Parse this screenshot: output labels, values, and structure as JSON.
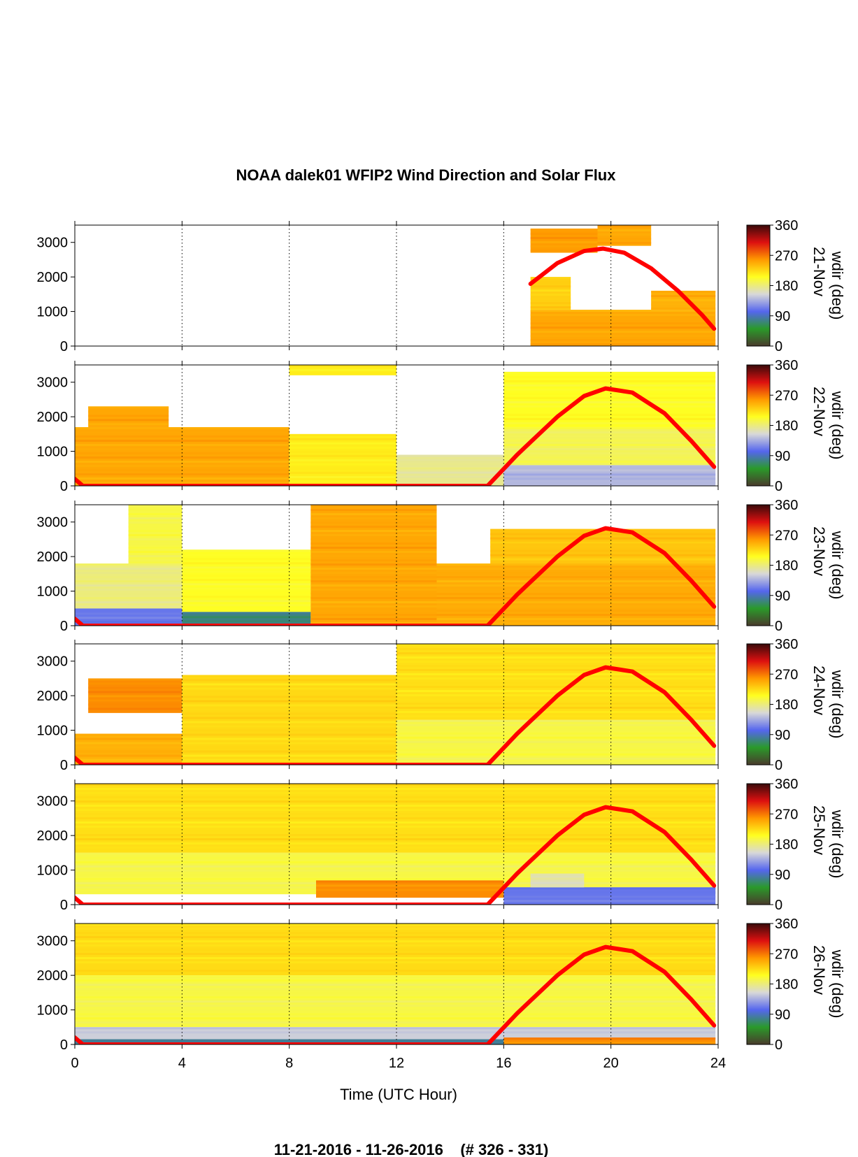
{
  "chart_data": {
    "type": "heatmap",
    "title": "NOAA dalek01 WFIP2 Wind Direction and Solar Flux",
    "xlabel": "Time (UTC Hour)",
    "footer": "11-21-2016 - 11-26-2016    (# 326 - 331)",
    "xlim": [
      0,
      24
    ],
    "x_ticks": [
      0,
      4,
      8,
      12,
      16,
      20,
      24
    ],
    "ylim": [
      0,
      3500
    ],
    "y_ticks": [
      0,
      1000,
      2000,
      3000
    ],
    "grid": "vertical dotted lines at 4-hour intervals",
    "colorbar": {
      "label": "wdir (deg)",
      "ticks": [
        0,
        90,
        180,
        270,
        360
      ],
      "colors": [
        "#4a3b2c",
        "#2a9a2a",
        "#5566ee",
        "#d8d8d8",
        "#ffff20",
        "#ff9900",
        "#dd1010",
        "#3a0a0a"
      ]
    },
    "series_color": "#ff0000",
    "panels": [
      {
        "day": "21-Nov",
        "solar_curve": {
          "x": [
            17.0,
            18.0,
            19.0,
            19.7,
            20.5,
            21.5,
            22.5,
            23.4,
            23.85
          ],
          "y": [
            1800,
            2400,
            2750,
            2820,
            2700,
            2250,
            1600,
            900,
            500
          ]
        },
        "regions": [
          {
            "x0": 17.0,
            "x1": 23.9,
            "y0": 0,
            "y1": 1050,
            "dir": 250
          },
          {
            "x0": 17.0,
            "x1": 19.5,
            "y0": 2700,
            "y1": 3400,
            "dir": 255
          },
          {
            "x0": 19.5,
            "x1": 21.5,
            "y0": 2900,
            "y1": 3500,
            "dir": 250
          },
          {
            "x0": 17.0,
            "x1": 18.5,
            "y0": 1050,
            "y1": 2000,
            "dir": 230
          },
          {
            "x0": 21.5,
            "x1": 23.9,
            "y0": 1050,
            "y1": 1600,
            "dir": 245
          }
        ]
      },
      {
        "day": "22-Nov",
        "solar_curve": {
          "x": [
            0.0,
            0.3,
            15.4,
            16.5,
            18.0,
            19.0,
            19.8,
            20.8,
            22.0,
            23.0,
            23.85
          ],
          "y": [
            200,
            0,
            0,
            900,
            2000,
            2600,
            2820,
            2700,
            2100,
            1300,
            550
          ]
        },
        "regions": [
          {
            "x0": 0.0,
            "x1": 8.0,
            "y0": 0,
            "y1": 1700,
            "dir": 250
          },
          {
            "x0": 8.0,
            "x1": 12.0,
            "y0": 0,
            "y1": 1500,
            "dir": 215
          },
          {
            "x0": 12.0,
            "x1": 16.0,
            "y0": 0,
            "y1": 900,
            "dir": 175
          },
          {
            "x0": 16.0,
            "x1": 23.9,
            "y0": 0,
            "y1": 600,
            "dir": 140
          },
          {
            "x0": 16.0,
            "x1": 23.9,
            "y0": 600,
            "y1": 1700,
            "dir": 190
          },
          {
            "x0": 16.0,
            "x1": 23.9,
            "y0": 1700,
            "y1": 3300,
            "dir": 205
          },
          {
            "x0": 8.0,
            "x1": 12.0,
            "y0": 3200,
            "y1": 3500,
            "dir": 215
          },
          {
            "x0": 0.5,
            "x1": 3.5,
            "y0": 1700,
            "y1": 2300,
            "dir": 250
          }
        ]
      },
      {
        "day": "23-Nov",
        "solar_curve": {
          "x": [
            0.0,
            0.3,
            15.4,
            16.5,
            18.0,
            19.0,
            19.8,
            20.8,
            22.0,
            23.0,
            23.85
          ],
          "y": [
            200,
            0,
            0,
            900,
            2000,
            2600,
            2820,
            2700,
            2100,
            1300,
            550
          ]
        },
        "regions": [
          {
            "x0": 0.0,
            "x1": 4.0,
            "y0": 0,
            "y1": 500,
            "dir": 110
          },
          {
            "x0": 0.0,
            "x1": 4.0,
            "y0": 500,
            "y1": 1800,
            "dir": 180
          },
          {
            "x0": 2.0,
            "x1": 4.0,
            "y0": 1800,
            "y1": 3500,
            "dir": 195
          },
          {
            "x0": 4.0,
            "x1": 8.8,
            "y0": 0,
            "y1": 400,
            "dir": 75
          },
          {
            "x0": 4.0,
            "x1": 8.8,
            "y0": 400,
            "y1": 2200,
            "dir": 205
          },
          {
            "x0": 8.8,
            "x1": 13.5,
            "y0": 0,
            "y1": 3500,
            "dir": 250
          },
          {
            "x0": 13.5,
            "x1": 23.9,
            "y0": 0,
            "y1": 1800,
            "dir": 248
          },
          {
            "x0": 15.5,
            "x1": 23.9,
            "y0": 1800,
            "y1": 2800,
            "dir": 235
          }
        ]
      },
      {
        "day": "24-Nov",
        "solar_curve": {
          "x": [
            0.0,
            0.3,
            15.4,
            16.5,
            18.0,
            19.0,
            19.8,
            20.8,
            22.0,
            23.0,
            23.85
          ],
          "y": [
            200,
            0,
            0,
            900,
            2000,
            2600,
            2820,
            2700,
            2100,
            1300,
            550
          ]
        },
        "regions": [
          {
            "x0": 0.0,
            "x1": 6.0,
            "y0": 0,
            "y1": 900,
            "dir": 245
          },
          {
            "x0": 0.5,
            "x1": 4.0,
            "y0": 1500,
            "y1": 2500,
            "dir": 262
          },
          {
            "x0": 4.0,
            "x1": 12.0,
            "y0": 0,
            "y1": 2600,
            "dir": 225
          },
          {
            "x0": 12.0,
            "x1": 23.9,
            "y0": 0,
            "y1": 1300,
            "dir": 195
          },
          {
            "x0": 12.0,
            "x1": 23.9,
            "y0": 1300,
            "y1": 3500,
            "dir": 222
          }
        ]
      },
      {
        "day": "25-Nov",
        "solar_curve": {
          "x": [
            0.0,
            0.3,
            15.4,
            16.5,
            18.0,
            19.0,
            19.8,
            20.8,
            22.0,
            23.0,
            23.85
          ],
          "y": [
            200,
            0,
            0,
            900,
            2000,
            2600,
            2820,
            2700,
            2100,
            1300,
            550
          ]
        },
        "regions": [
          {
            "x0": 0.0,
            "x1": 23.9,
            "y0": 1500,
            "y1": 3500,
            "dir": 222
          },
          {
            "x0": 0.0,
            "x1": 23.9,
            "y0": 300,
            "y1": 1500,
            "dir": 195
          },
          {
            "x0": 9.0,
            "x1": 16.0,
            "y0": 200,
            "y1": 700,
            "dir": 262
          },
          {
            "x0": 16.0,
            "x1": 23.9,
            "y0": 0,
            "y1": 500,
            "dir": 110
          },
          {
            "x0": 17.0,
            "x1": 19.0,
            "y0": 500,
            "y1": 900,
            "dir": 165
          }
        ]
      },
      {
        "day": "26-Nov",
        "solar_curve": {
          "x": [
            0.0,
            0.3,
            15.4,
            16.5,
            18.0,
            19.0,
            19.8,
            20.8,
            22.0,
            23.0,
            23.85
          ],
          "y": [
            200,
            0,
            0,
            900,
            2000,
            2600,
            2820,
            2700,
            2100,
            1300,
            550
          ]
        },
        "regions": [
          {
            "x0": 0.0,
            "x1": 23.9,
            "y0": 2000,
            "y1": 3500,
            "dir": 224
          },
          {
            "x0": 0.0,
            "x1": 23.9,
            "y0": 500,
            "y1": 2000,
            "dir": 195
          },
          {
            "x0": 0.0,
            "x1": 23.9,
            "y0": 150,
            "y1": 500,
            "dir": 150
          },
          {
            "x0": 0.0,
            "x1": 16.0,
            "y0": 0,
            "y1": 150,
            "dir": 80
          },
          {
            "x0": 16.0,
            "x1": 23.9,
            "y0": 0,
            "y1": 200,
            "dir": 262
          }
        ]
      }
    ]
  }
}
